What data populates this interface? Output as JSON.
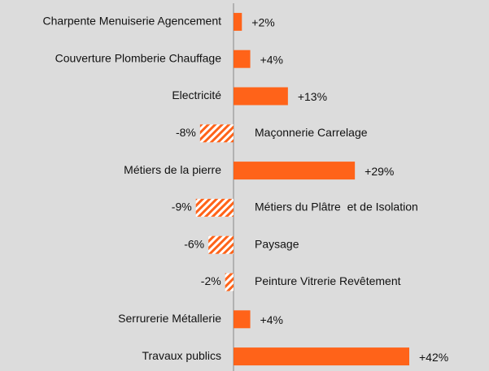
{
  "chart_data": {
    "type": "bar",
    "orientation": "horizontal",
    "categories": [
      "Charpente Menuiserie Agencement",
      "Couverture Plomberie Chauffage",
      "Electricité",
      "Maçonnerie Carrelage",
      "Métiers de la pierre",
      "Métiers du Plâtre  et de Isolation",
      "Paysage",
      "Peinture Vitrerie Revêtement",
      "Serrurerie Métallerie",
      "Travaux publics"
    ],
    "values": [
      2,
      4,
      13,
      -8,
      29,
      -9,
      -6,
      -2,
      4,
      42
    ],
    "value_labels": [
      "+2%",
      "+4%",
      "+13%",
      "-8%",
      "+29%",
      "-9%",
      "-6%",
      "-2%",
      "+4%",
      "+42%"
    ],
    "color": "#ff6319",
    "negative_style": "hatched"
  }
}
